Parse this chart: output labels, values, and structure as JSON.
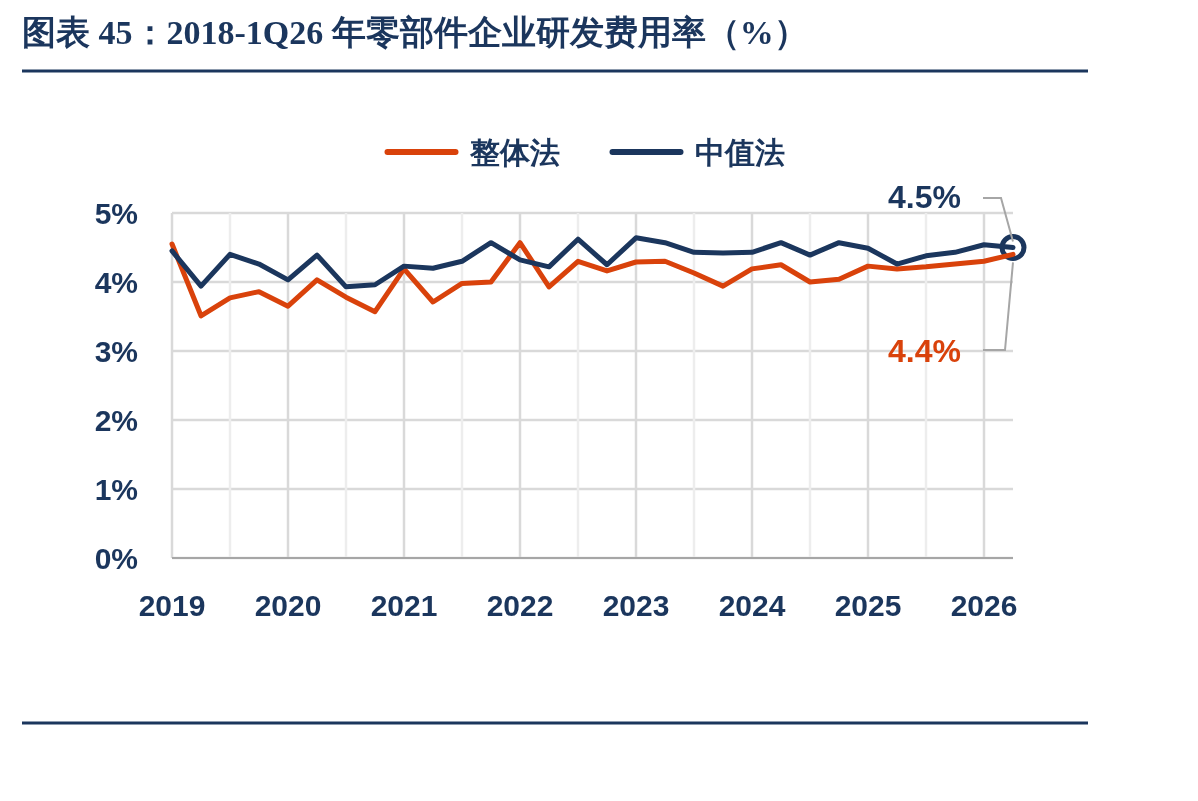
{
  "chart_data": {
    "type": "line",
    "title": "图表 45：2018-1Q26 年零部件企业研发费用率（%）",
    "x": [
      2019,
      2019.25,
      2019.5,
      2019.75,
      2020,
      2020.25,
      2020.5,
      2020.75,
      2021,
      2021.25,
      2021.5,
      2021.75,
      2022,
      2022.25,
      2022.5,
      2022.75,
      2023,
      2023.25,
      2023.5,
      2023.75,
      2024,
      2024.25,
      2024.5,
      2024.75,
      2025,
      2025.25,
      2025.5,
      2025.75,
      2026,
      2026.25
    ],
    "series": [
      {
        "name": "整体法",
        "color": "#d9420b",
        "values": [
          4.55,
          3.51,
          3.77,
          3.86,
          3.65,
          4.03,
          3.78,
          3.57,
          4.19,
          3.71,
          3.98,
          4.0,
          4.57,
          3.93,
          4.3,
          4.16,
          4.29,
          4.3,
          4.13,
          3.94,
          4.19,
          4.25,
          4.0,
          4.04,
          4.23,
          4.19,
          4.22,
          4.26,
          4.3,
          4.4
        ]
      },
      {
        "name": "中值法",
        "color": "#1b365d",
        "values": [
          4.45,
          3.94,
          4.4,
          4.26,
          4.03,
          4.39,
          3.93,
          3.96,
          4.23,
          4.2,
          4.3,
          4.57,
          4.32,
          4.22,
          4.62,
          4.25,
          4.64,
          4.57,
          4.43,
          4.42,
          4.43,
          4.57,
          4.39,
          4.57,
          4.49,
          4.26,
          4.38,
          4.43,
          4.54,
          4.5
        ]
      }
    ],
    "xlim": [
      2019,
      2026.25
    ],
    "xticks": [
      2019,
      {
        "value": 2019.5,
        "label": null
      },
      2020,
      {
        "value": 2020.5,
        "label": null
      },
      2021,
      {
        "value": 2021.5,
        "label": null
      },
      2022,
      {
        "value": 2022.5,
        "label": null
      },
      2023,
      {
        "value": 2023.5,
        "label": null
      },
      2024,
      {
        "value": 2024.5,
        "label": null
      },
      2025,
      {
        "value": 2025.5,
        "label": null
      },
      2026
    ],
    "ylim": [
      0,
      5
    ],
    "yticks": [
      {
        "value": 0,
        "label": "0%"
      },
      {
        "value": 1,
        "label": "1%"
      },
      {
        "value": 2,
        "label": "2%"
      },
      {
        "value": 3,
        "label": "3%"
      },
      {
        "value": 4,
        "label": "4%"
      },
      {
        "value": 5,
        "label": "5%"
      }
    ],
    "grid": true,
    "legend": "top",
    "marker": "none",
    "line_style": "solid",
    "annotations": [
      {
        "text": "4.5%",
        "x": 2026.25,
        "y": 4.5
      },
      {
        "text": "4.4%",
        "x": 2026.25,
        "y": 4.4
      }
    ]
  }
}
